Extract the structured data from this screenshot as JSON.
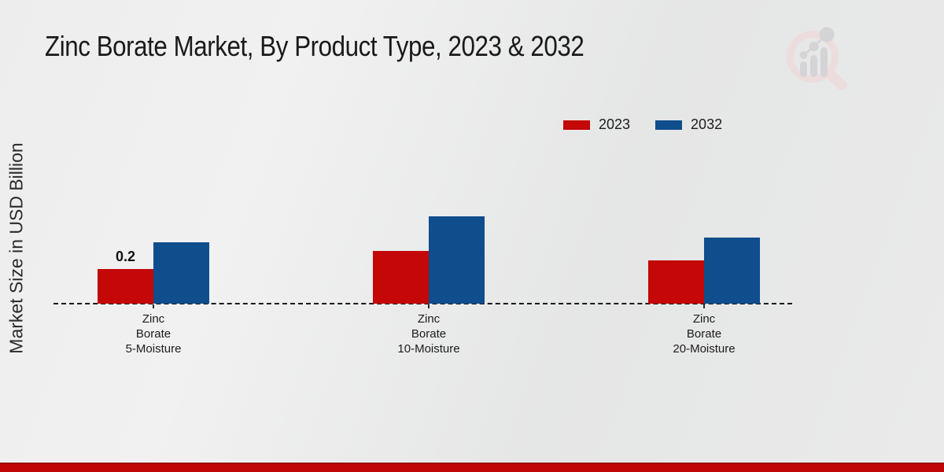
{
  "page": {
    "title": "Zinc Borate Market, By Product Type, 2023 & 2032"
  },
  "y_axis": {
    "label": "Market Size in USD Billion"
  },
  "legend": {
    "items": [
      {
        "label": "2023",
        "color": "#c40707"
      },
      {
        "label": "2032",
        "color": "#0f4d8c"
      }
    ]
  },
  "chart_data": {
    "type": "bar",
    "title": "Zinc Borate Market, By Product Type, 2023 & 2032",
    "xlabel": "",
    "ylabel": "Market Size in USD Billion",
    "unit": "USD Billion",
    "categories": [
      "Zinc Borate 5-Moisture",
      "Zinc Borate 10-Moisture",
      "Zinc Borate 20-Moisture"
    ],
    "category_display_lines": [
      [
        "Zinc",
        "Borate",
        "5-Moisture"
      ],
      [
        "Zinc",
        "Borate",
        "10-Moisture"
      ],
      [
        "Zinc",
        "Borate",
        "20-Moisture"
      ]
    ],
    "series": [
      {
        "name": "2023",
        "color": "#c40707",
        "values": [
          0.2,
          0.3,
          0.25
        ]
      },
      {
        "name": "2032",
        "color": "#0f4d8c",
        "values": [
          0.35,
          0.5,
          0.38
        ]
      }
    ],
    "bar_labels": [
      {
        "series": "2023",
        "category_index": 0,
        "text": "0.2"
      }
    ],
    "ylim": [
      0,
      0.55
    ],
    "grid": false,
    "legend_position": "top-right",
    "axis_line_style": "dashed",
    "bar_colors": {
      "2023": "#c40707",
      "2032": "#0f4d8c"
    }
  },
  "watermark": {
    "icon": "magnifier-bar-chart-logo",
    "ring_color": "#eedcdc",
    "glyph_color": "#d4d4d6"
  },
  "footer": {
    "accent_color": "#c10606",
    "edge_color": "#9a0808"
  }
}
